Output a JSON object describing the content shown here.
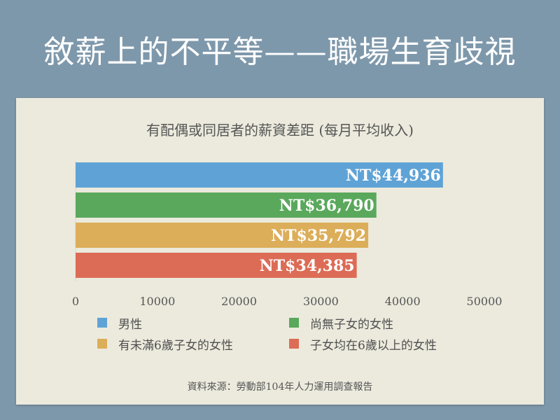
{
  "slide": {
    "title": "敘薪上的不平等——職場生育歧視"
  },
  "chart_data": {
    "type": "bar",
    "orientation": "horizontal",
    "title": "有配偶或同居者的薪資差距 (每月平均收入)",
    "categories": [
      "男性",
      "尚無子女的女性",
      "有未滿6歲子女的女性",
      "子女均在6歲以上的女性"
    ],
    "values": [
      44936,
      36790,
      35792,
      34385
    ],
    "data_labels": [
      "NT$44,936",
      "NT$36,790",
      "NT$35,792",
      "NT$34,385"
    ],
    "colors": [
      "#5fa3d6",
      "#5aa85c",
      "#dcae59",
      "#dc6c56"
    ],
    "xlim": [
      0,
      50000
    ],
    "xticks": [
      0,
      10000,
      20000,
      30000,
      40000,
      50000
    ],
    "tick_labels": [
      "0",
      "10000",
      "20000",
      "30000",
      "40000",
      "50000"
    ],
    "xlabel": "",
    "ylabel": "",
    "legend_position": "bottom",
    "legend": [
      {
        "label": "男性",
        "color": "#5fa3d6"
      },
      {
        "label": "尚無子女的女性",
        "color": "#5aa85c"
      },
      {
        "label": "有未滿6歲子女的女性",
        "color": "#dcae59"
      },
      {
        "label": "子女均在6歲以上的女性",
        "color": "#dc6c56"
      }
    ]
  },
  "source_note": "資料來源：勞動部104年人力運用調查報告"
}
